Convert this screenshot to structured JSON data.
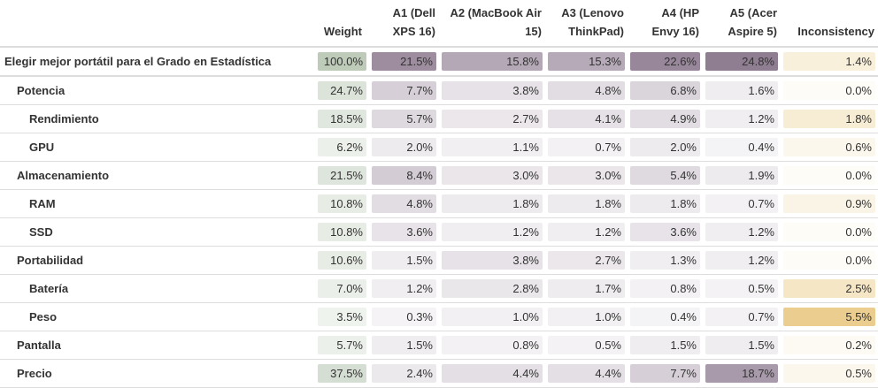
{
  "table": {
    "headers": {
      "weight": "Weight",
      "alternatives": [
        "A1 (Dell XPS 16)",
        "A2 (MacBook Air 15)",
        "A3 (Lenovo ThinkPad)",
        "A4 (HP Envy 16)",
        "A5 (Acer Aspire 5)"
      ],
      "inconsistency": "Inconsistency"
    },
    "rows": [
      {
        "label": "Elegir mejor portátil para el Grado en Estadística",
        "level": 0,
        "weight": "100.0%",
        "values": [
          "21.5%",
          "15.8%",
          "15.3%",
          "22.6%",
          "24.8%"
        ],
        "inconsistency": "1.4%"
      },
      {
        "label": "Potencia",
        "level": 1,
        "weight": "24.7%",
        "values": [
          "7.7%",
          "3.8%",
          "4.8%",
          "6.8%",
          "1.6%"
        ],
        "inconsistency": "0.0%"
      },
      {
        "label": "Rendimiento",
        "level": 2,
        "weight": "18.5%",
        "values": [
          "5.7%",
          "2.7%",
          "4.1%",
          "4.9%",
          "1.2%"
        ],
        "inconsistency": "1.8%"
      },
      {
        "label": "GPU",
        "level": 2,
        "weight": "6.2%",
        "values": [
          "2.0%",
          "1.1%",
          "0.7%",
          "2.0%",
          "0.4%"
        ],
        "inconsistency": "0.6%"
      },
      {
        "label": "Almacenamiento",
        "level": 1,
        "weight": "21.5%",
        "values": [
          "8.4%",
          "3.0%",
          "3.0%",
          "5.4%",
          "1.9%"
        ],
        "inconsistency": "0.0%"
      },
      {
        "label": "RAM",
        "level": 2,
        "weight": "10.8%",
        "values": [
          "4.8%",
          "1.8%",
          "1.8%",
          "1.8%",
          "0.7%"
        ],
        "inconsistency": "0.9%"
      },
      {
        "label": "SSD",
        "level": 2,
        "weight": "10.8%",
        "values": [
          "3.6%",
          "1.2%",
          "1.2%",
          "3.6%",
          "1.2%"
        ],
        "inconsistency": "0.0%"
      },
      {
        "label": "Portabilidad",
        "level": 1,
        "weight": "10.6%",
        "values": [
          "1.5%",
          "3.8%",
          "2.7%",
          "1.3%",
          "1.2%"
        ],
        "inconsistency": "0.0%"
      },
      {
        "label": "Batería",
        "level": 2,
        "weight": "7.0%",
        "values": [
          "1.2%",
          "2.8%",
          "1.7%",
          "0.8%",
          "0.5%"
        ],
        "inconsistency": "2.5%"
      },
      {
        "label": "Peso",
        "level": 2,
        "weight": "3.5%",
        "values": [
          "0.3%",
          "1.0%",
          "1.0%",
          "0.4%",
          "0.7%"
        ],
        "inconsistency": "5.5%"
      },
      {
        "label": "Pantalla",
        "level": 1,
        "weight": "5.7%",
        "values": [
          "1.5%",
          "0.8%",
          "0.5%",
          "1.5%",
          "1.5%"
        ],
        "inconsistency": "0.2%"
      },
      {
        "label": "Precio",
        "level": 1,
        "weight": "37.5%",
        "values": [
          "2.4%",
          "4.4%",
          "4.4%",
          "7.7%",
          "18.7%"
        ],
        "inconsistency": "0.5%"
      }
    ]
  },
  "colors": {
    "weight_shade": "#bdcbb8",
    "alternative_shade": "#7d6880",
    "inconsistency_shade": "#e4be6a",
    "border": "#dddddd",
    "text": "#333333"
  }
}
